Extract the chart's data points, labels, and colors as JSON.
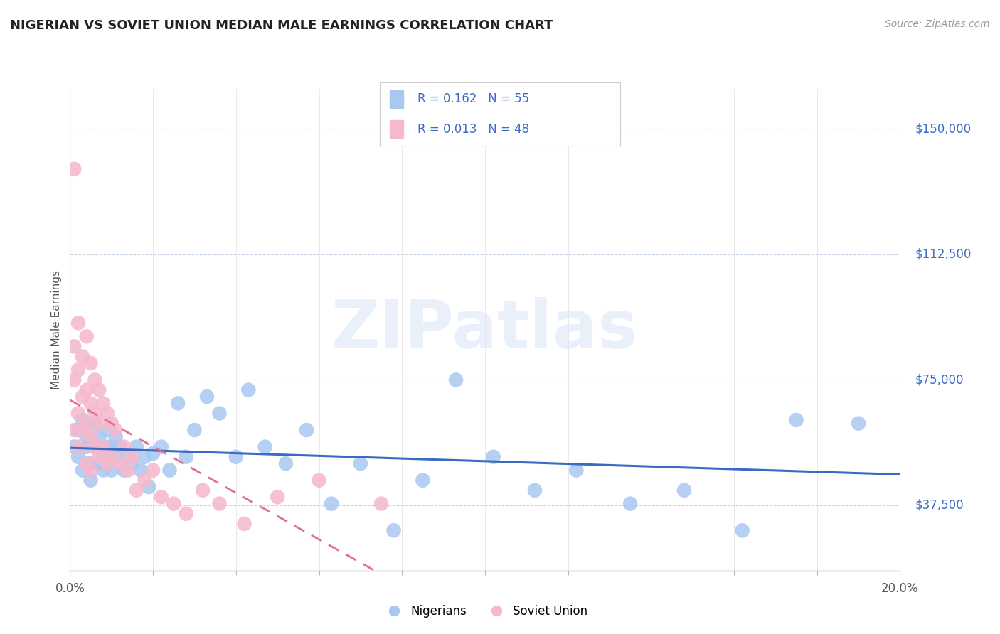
{
  "title": "NIGERIAN VS SOVIET UNION MEDIAN MALE EARNINGS CORRELATION CHART",
  "source": "Source: ZipAtlas.com",
  "ylabel": "Median Male Earnings",
  "y_ticks": [
    37500,
    75000,
    112500,
    150000
  ],
  "y_tick_labels": [
    "$37,500",
    "$75,000",
    "$112,500",
    "$150,000"
  ],
  "x_min": 0.0,
  "x_max": 0.2,
  "y_min": 18000,
  "y_max": 162000,
  "nigerian_R": 0.162,
  "nigerian_N": 55,
  "soviet_R": 0.013,
  "soviet_N": 48,
  "nigerian_color": "#a8c8f0",
  "nigerian_line_color": "#3a6bc4",
  "soviet_color": "#f5b8cc",
  "soviet_line_color": "#e07090",
  "background_color": "#ffffff",
  "grid_color": "#c8d4e8",
  "watermark": "ZIPatlas",
  "legend_label_nigerian": "Nigerians",
  "legend_label_soviet": "Soviet Union",
  "nigerian_points_x": [
    0.001,
    0.002,
    0.002,
    0.003,
    0.003,
    0.004,
    0.004,
    0.005,
    0.005,
    0.006,
    0.006,
    0.007,
    0.007,
    0.008,
    0.008,
    0.009,
    0.009,
    0.01,
    0.01,
    0.011,
    0.011,
    0.012,
    0.013,
    0.014,
    0.015,
    0.016,
    0.017,
    0.018,
    0.019,
    0.02,
    0.022,
    0.024,
    0.026,
    0.028,
    0.03,
    0.033,
    0.036,
    0.04,
    0.043,
    0.047,
    0.052,
    0.057,
    0.063,
    0.07,
    0.078,
    0.085,
    0.093,
    0.102,
    0.112,
    0.122,
    0.135,
    0.148,
    0.162,
    0.175,
    0.19
  ],
  "nigerian_points_y": [
    55000,
    52000,
    60000,
    48000,
    63000,
    55000,
    58000,
    50000,
    45000,
    62000,
    55000,
    50000,
    58000,
    53000,
    48000,
    60000,
    55000,
    48000,
    55000,
    58000,
    52000,
    55000,
    48000,
    52000,
    50000,
    55000,
    48000,
    52000,
    43000,
    53000,
    55000,
    48000,
    68000,
    52000,
    60000,
    70000,
    65000,
    52000,
    72000,
    55000,
    50000,
    60000,
    38000,
    50000,
    30000,
    45000,
    75000,
    52000,
    42000,
    48000,
    38000,
    42000,
    30000,
    63000,
    62000
  ],
  "soviet_points_x": [
    0.001,
    0.001,
    0.001,
    0.001,
    0.002,
    0.002,
    0.002,
    0.002,
    0.003,
    0.003,
    0.003,
    0.004,
    0.004,
    0.004,
    0.004,
    0.005,
    0.005,
    0.005,
    0.005,
    0.006,
    0.006,
    0.006,
    0.007,
    0.007,
    0.007,
    0.008,
    0.008,
    0.009,
    0.009,
    0.01,
    0.01,
    0.011,
    0.012,
    0.013,
    0.014,
    0.015,
    0.016,
    0.018,
    0.02,
    0.022,
    0.025,
    0.028,
    0.032,
    0.036,
    0.042,
    0.05,
    0.06,
    0.075
  ],
  "soviet_points_y": [
    138000,
    75000,
    85000,
    60000,
    92000,
    78000,
    65000,
    55000,
    82000,
    70000,
    60000,
    88000,
    72000,
    62000,
    50000,
    80000,
    68000,
    58000,
    48000,
    75000,
    65000,
    55000,
    72000,
    62000,
    52000,
    68000,
    55000,
    65000,
    50000,
    62000,
    52000,
    60000,
    50000,
    55000,
    48000,
    52000,
    42000,
    45000,
    48000,
    40000,
    38000,
    35000,
    42000,
    38000,
    32000,
    40000,
    45000,
    38000
  ]
}
